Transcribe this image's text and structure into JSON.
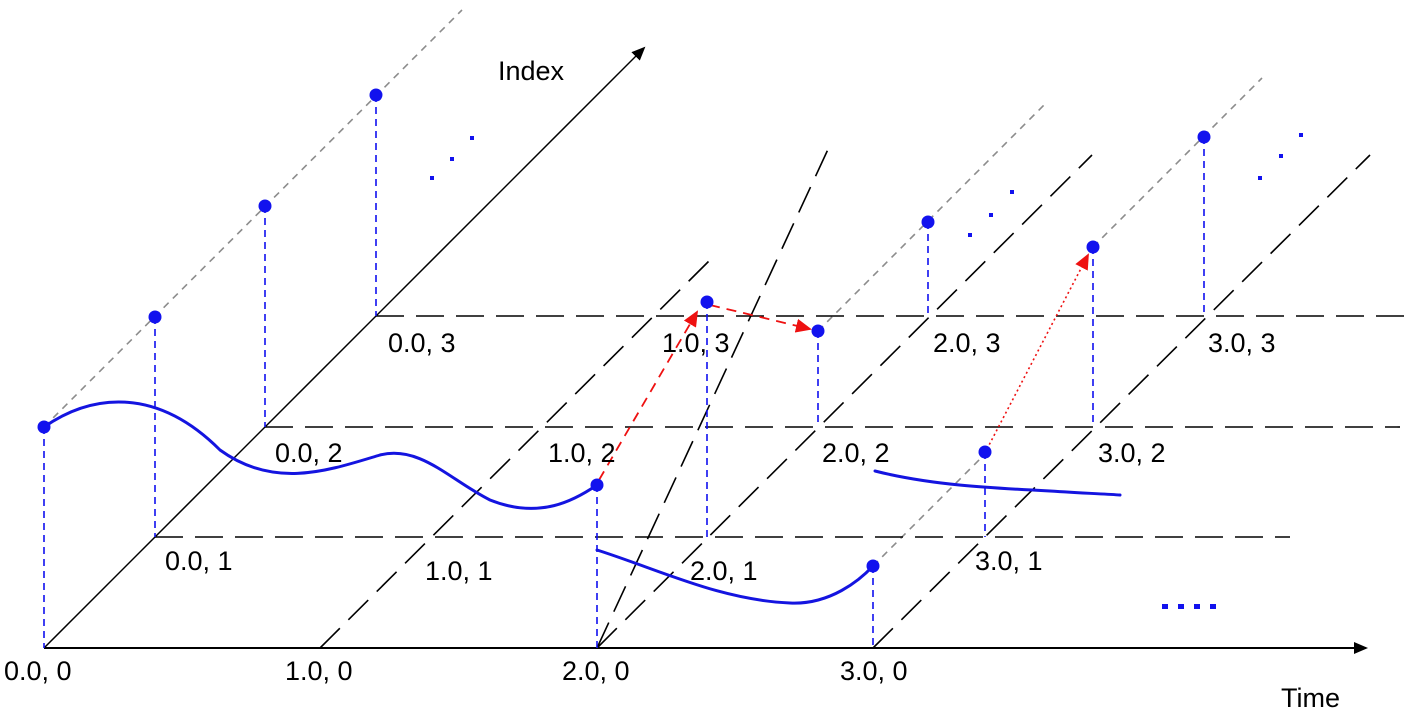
{
  "axes": {
    "x_label": "Time",
    "y_label": "Index"
  },
  "labels": {
    "t0_i0": "0.0, 0",
    "t1_i0": "1.0, 0",
    "t2_i0": "2.0, 0",
    "t3_i0": "3.0, 0",
    "t0_i1": "0.0, 1",
    "t1_i1": "1.0, 1",
    "t2_i1": "2.0, 1",
    "t3_i1": "3.0, 1",
    "t0_i2": "0.0, 2",
    "t1_i2": "1.0, 2",
    "t2_i2": "2.0, 2",
    "t3_i2": "3.0, 2",
    "t0_i3": "0.0, 3",
    "t1_i3": "1.0, 3",
    "t2_i3": "2.0, 3",
    "t3_i3": "3.0, 3"
  },
  "colors": {
    "signal": "#1414e0",
    "event_arrow": "#ee1111",
    "grid": "#000000",
    "index_guide": "#8c8c8c"
  }
}
